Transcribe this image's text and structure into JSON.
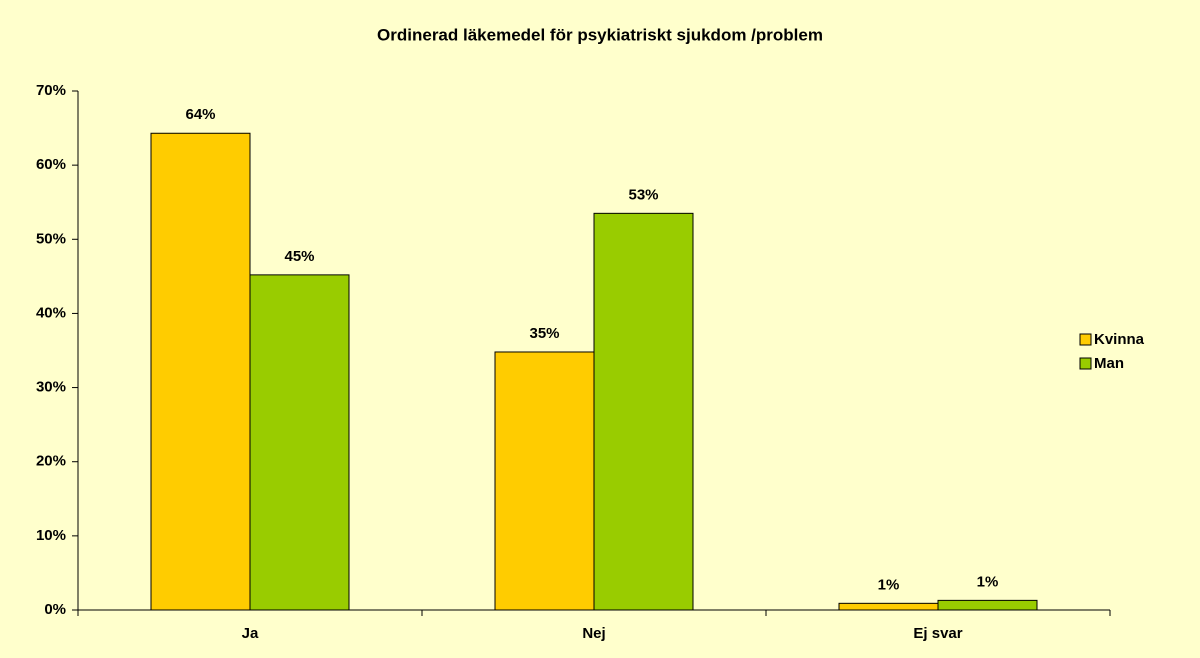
{
  "chart_data": {
    "type": "bar",
    "title": "Ordinerad läkemedel  för psykiatriskt sjukdom /problem",
    "categories": [
      "Ja",
      "Nej",
      "Ej svar"
    ],
    "series": [
      {
        "name": "Kvinna",
        "color": "#ffcc00",
        "values": [
          64.3,
          34.8,
          0.9
        ],
        "value_labels": [
          "64%",
          "35%",
          "1%"
        ]
      },
      {
        "name": "Man",
        "color": "#99cc00",
        "values": [
          45.2,
          53.5,
          1.3
        ],
        "value_labels": [
          "45%",
          "53%",
          "1%"
        ]
      }
    ],
    "ylim": [
      0,
      70
    ],
    "yticks": [
      {
        "value": 0,
        "label": "0%"
      },
      {
        "value": 10,
        "label": "10%"
      },
      {
        "value": 20,
        "label": "20%"
      },
      {
        "value": 30,
        "label": "30%"
      },
      {
        "value": 40,
        "label": "40%"
      },
      {
        "value": 50,
        "label": "50%"
      },
      {
        "value": 60,
        "label": "60%"
      },
      {
        "value": 70,
        "label": "70%"
      }
    ],
    "grid": false,
    "legend": "right"
  }
}
